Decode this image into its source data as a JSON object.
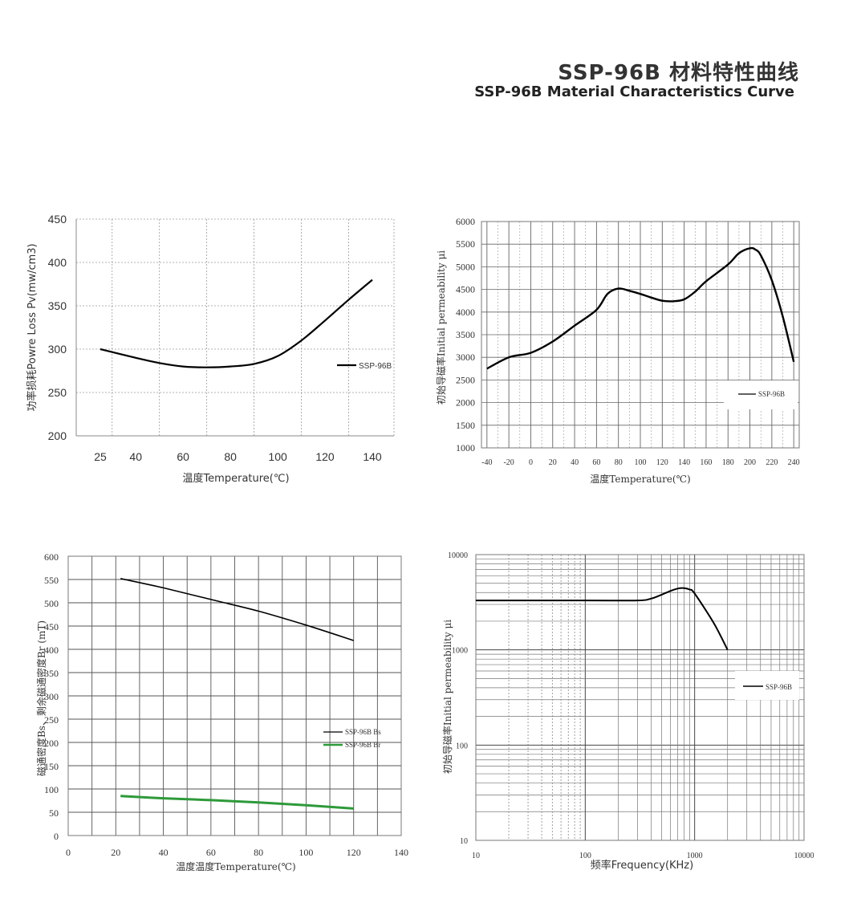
{
  "header": {
    "title_cn": "SSP-96B 材料特性曲线",
    "title_en": "SSP-96B Material Characteristics Curve"
  },
  "colors": {
    "line": "#000000",
    "grid": "#9a9a9a",
    "br_line": "#2e9a3a"
  },
  "chart_data": [
    {
      "type": "line",
      "id": "power-loss",
      "xlabel": "温度Temperature(℃)",
      "ylabel": "功率损耗Powre Loss Pv(mw/cm3)",
      "x_ticks": [
        25,
        40,
        60,
        80,
        100,
        120,
        140
      ],
      "y_ticks": [
        200,
        250,
        300,
        350,
        400,
        450
      ],
      "ylim": [
        200,
        450
      ],
      "grid": true,
      "legend_position": "right",
      "series": [
        {
          "name": "SSP-96B",
          "x": [
            25,
            40,
            50,
            60,
            70,
            80,
            90,
            100,
            110,
            120,
            130,
            140
          ],
          "y": [
            300,
            290,
            284,
            280,
            279,
            280,
            283,
            292,
            310,
            333,
            357,
            380
          ]
        }
      ]
    },
    {
      "type": "line",
      "id": "permeability-temperature",
      "xlabel": "温度Temperature(℃)",
      "ylabel": "初始导磁率Initial permeability μi",
      "x_ticks": [
        -40,
        -20,
        0,
        20,
        40,
        60,
        80,
        100,
        120,
        140,
        160,
        180,
        200,
        220,
        240
      ],
      "y_ticks": [
        1000,
        1500,
        2000,
        2500,
        3000,
        3500,
        4000,
        4500,
        5000,
        5500,
        6000
      ],
      "xlim": [
        -45,
        245
      ],
      "ylim": [
        1000,
        6000
      ],
      "grid": true,
      "legend_position": "bottom-right",
      "series": [
        {
          "name": "SSP-96B",
          "x": [
            -40,
            -20,
            0,
            20,
            40,
            60,
            70,
            80,
            90,
            100,
            110,
            120,
            130,
            140,
            150,
            160,
            180,
            190,
            200,
            205,
            210,
            220,
            230,
            240
          ],
          "y": [
            2750,
            3000,
            3100,
            3350,
            3700,
            4050,
            4400,
            4520,
            4470,
            4400,
            4320,
            4250,
            4240,
            4280,
            4450,
            4680,
            5050,
            5300,
            5410,
            5380,
            5250,
            4700,
            3900,
            2900
          ]
        }
      ]
    },
    {
      "type": "line",
      "id": "flux-density",
      "xlabel": "温度温度Temperature(℃)",
      "ylabel": "磁通密度Bs、剩余磁通密度Br (mT)",
      "x_ticks": [
        0,
        20,
        40,
        60,
        80,
        100,
        120,
        140
      ],
      "y_ticks": [
        0,
        50,
        100,
        150,
        200,
        250,
        300,
        350,
        400,
        450,
        500,
        550,
        600
      ],
      "xlim": [
        0,
        140
      ],
      "ylim": [
        0,
        600
      ],
      "grid": true,
      "legend_position": "right",
      "series": [
        {
          "name": "SSP-96B Bs",
          "x": [
            22,
            40,
            60,
            80,
            100,
            120
          ],
          "y": [
            552,
            532,
            507,
            482,
            452,
            419
          ]
        },
        {
          "name": "SSP-96B Br",
          "x": [
            22,
            40,
            60,
            80,
            100,
            120
          ],
          "y": [
            85,
            80,
            76,
            71,
            65,
            58
          ]
        }
      ]
    },
    {
      "type": "line",
      "id": "permeability-frequency",
      "xlabel": "频率Frequency(KHz)",
      "ylabel": "初始导磁率Initial permeability μi",
      "xscale": "log",
      "yscale": "log",
      "x_ticks": [
        "10",
        "100",
        "1000",
        "10000"
      ],
      "y_ticks": [
        "10",
        "100",
        "1000",
        "10000"
      ],
      "xlim": [
        10,
        10000
      ],
      "ylim": [
        10,
        10000
      ],
      "grid": true,
      "legend_position": "right",
      "series": [
        {
          "name": "SSP-96B",
          "x": [
            10,
            100,
            300,
            400,
            500,
            600,
            700,
            800,
            900,
            1000,
            1500,
            2000
          ],
          "y": [
            3300,
            3300,
            3300,
            3450,
            3800,
            4150,
            4400,
            4450,
            4300,
            3900,
            1900,
            1000
          ]
        }
      ]
    }
  ]
}
